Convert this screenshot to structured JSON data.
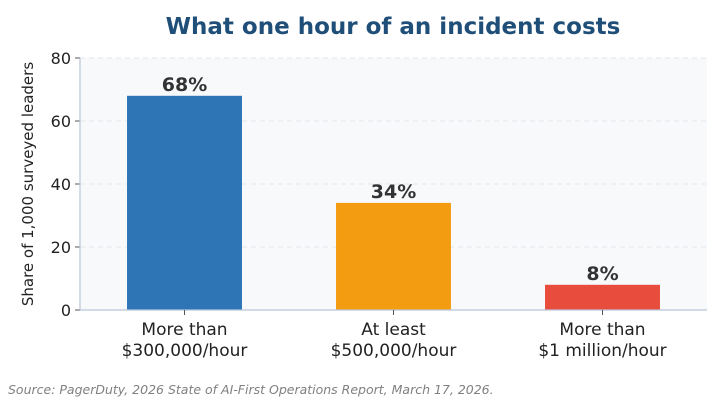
{
  "chart_data": {
    "type": "bar",
    "title": "What one hour of an incident costs",
    "ylabel": "Share of 1,000 surveyed leaders",
    "xlabel": "",
    "categories": [
      [
        "More than",
        "$300,000/hour"
      ],
      [
        "At least",
        "$500,000/hour"
      ],
      [
        "More than",
        "$1 million/hour"
      ]
    ],
    "values": [
      68,
      34,
      8
    ],
    "value_labels": [
      "68%",
      "34%",
      "8%"
    ],
    "bar_colors": [
      "#2e75b6",
      "#f39c12",
      "#e74c3c"
    ],
    "ylim": [
      0,
      80
    ],
    "yticks": [
      0,
      20,
      40,
      60,
      80
    ],
    "grid": true,
    "legend": "none"
  },
  "source": "Source: PagerDuty, 2026 State of AI-First Operations Report, March 17, 2026."
}
